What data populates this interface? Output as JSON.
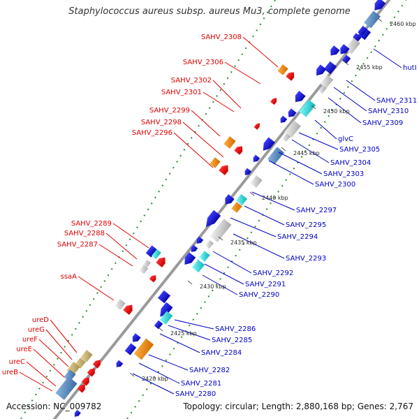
{
  "title": "Staphylococcus aureus subsp. aureus Mu3, complete genome",
  "footer": {
    "accession": "Accession: NC_009782",
    "summary": "Topology: circular; Length: 2,880,168 bp; Genes: 2,767"
  },
  "ticks": [
    "2460 kbp",
    "2455 kbp",
    "2450 kbp",
    "2445 kbp",
    "2440 kbp",
    "2435 kbp",
    "2430 kbp",
    "2425 kbp",
    "2420 kbp"
  ],
  "left_labels": [
    "SAHV_2308",
    "SAHV_2306",
    "SAHV_2302",
    "SAHV_2301",
    "SAHV_2299",
    "SAHV_2298",
    "SAHV_2296",
    "SAHV_2289",
    "SAHV_2288",
    "SAHV_2287",
    "ssaA",
    "ureD",
    "ureG",
    "ureF",
    "ureE",
    "ureC",
    "ureB"
  ],
  "right_labels": [
    "hutI",
    "SAHV_2311",
    "SAHV_2310",
    "SAHV_2309",
    "glvC",
    "SAHV_2305",
    "SAHV_2304",
    "SAHV_2303",
    "SAHV_2300",
    "SAHV_2297",
    "SAHV_2295",
    "SAHV_2294",
    "SAHV_2293",
    "SAHV_2292",
    "SAHV_2291",
    "SAHV_2290",
    "SAHV_2286",
    "SAHV_2285",
    "SAHV_2284",
    "SAHV_2282",
    "SAHV_2281",
    "SAHV_2280"
  ],
  "colors": {
    "backbone": "#9a9a9a",
    "forward_feature": "#ff1a1a",
    "reverse_feature": "#1414e6",
    "orange_feature": "#f08a10",
    "cyan_feature": "#20d8d8",
    "steel_feature": "#5588bb",
    "gray_feature": "#cfcfcf",
    "khaki_feature": "#c8b46e",
    "gc_dots": "#2a8a2a",
    "left_label_color": "#e00000",
    "right_label_color": "#0000c8"
  }
}
